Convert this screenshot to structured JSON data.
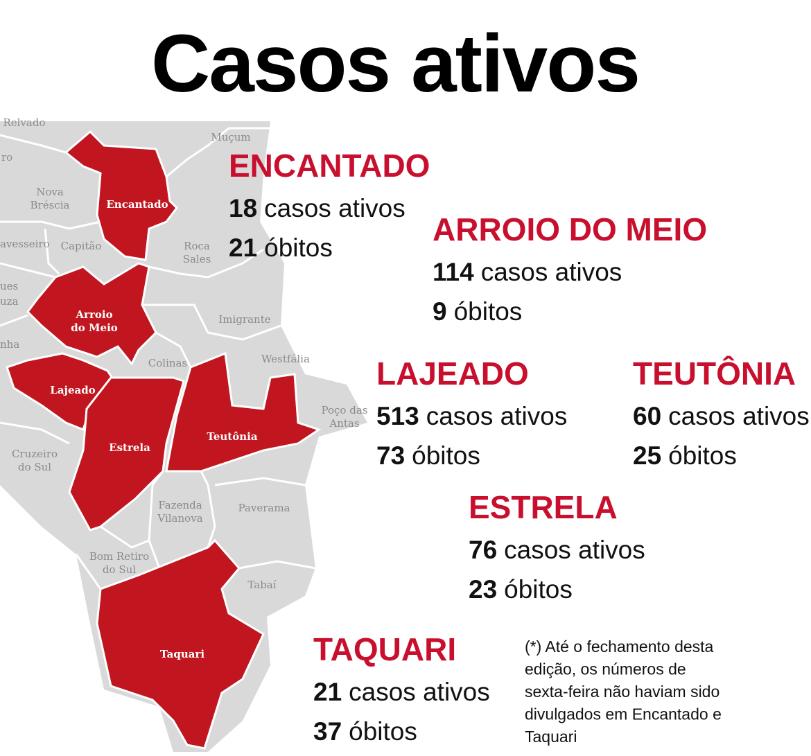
{
  "title": "Casos ativos",
  "map": {
    "labels": [
      {
        "lines": [
          "Relvado"
        ]
      },
      {
        "lines": [
          "ro"
        ]
      },
      {
        "lines": [
          "avesseiro"
        ]
      },
      {
        "lines": [
          "ues"
        ]
      },
      {
        "lines": [
          "uza"
        ]
      },
      {
        "lines": [
          "nha"
        ]
      },
      {
        "lines": [
          "Muçum"
        ]
      },
      {
        "lines": [
          "Nova",
          "Bréscia"
        ]
      },
      {
        "lines": [
          "Capitão"
        ]
      },
      {
        "lines": [
          "Roca",
          "Sales"
        ]
      },
      {
        "lines": [
          "Imigrante"
        ]
      },
      {
        "lines": [
          "Colinas"
        ]
      },
      {
        "lines": [
          "Westfália"
        ]
      },
      {
        "lines": [
          "Poço das",
          "Antas"
        ]
      },
      {
        "lines": [
          "Cruzeiro",
          "do Sul"
        ]
      },
      {
        "lines": [
          "Fazenda",
          "Vilanova"
        ]
      },
      {
        "lines": [
          "Paverama"
        ]
      },
      {
        "lines": [
          "Bom Retiro",
          "do Sul"
        ]
      },
      {
        "lines": [
          "Tabaí"
        ]
      }
    ],
    "highlighted_labels": [
      {
        "lines": [
          "Encantado"
        ]
      },
      {
        "lines": [
          "Arroio",
          "do Meio"
        ]
      },
      {
        "lines": [
          "Lajeado"
        ]
      },
      {
        "lines": [
          "Estrela"
        ]
      },
      {
        "lines": [
          "Teutônia"
        ]
      },
      {
        "lines": [
          "Taquari"
        ]
      }
    ]
  },
  "cities": [
    {
      "name": "ENCANTADO",
      "cases": 18,
      "cases_label": "casos ativos",
      "deaths": 21,
      "deaths_label": "óbitos"
    },
    {
      "name": "ARROIO DO MEIO",
      "cases": 114,
      "cases_label": "casos ativos",
      "deaths": 9,
      "deaths_label": "óbitos"
    },
    {
      "name": "LAJEADO",
      "cases": 513,
      "cases_label": "casos ativos",
      "deaths": 73,
      "deaths_label": "óbitos"
    },
    {
      "name": "TEUTÔNIA",
      "cases": 60,
      "cases_label": "casos ativos",
      "deaths": 25,
      "deaths_label": "óbitos"
    },
    {
      "name": "ESTRELA",
      "cases": 76,
      "cases_label": "casos ativos",
      "deaths": 23,
      "deaths_label": "óbitos"
    },
    {
      "name": "TAQUARI",
      "cases": 21,
      "cases_label": "casos ativos",
      "deaths": 37,
      "deaths_label": "óbitos"
    }
  ],
  "footnote": [
    "(*) Até o fechamento desta",
    "edição, os números de",
    "sexta-feira não haviam sido",
    "divulgados em Encantado e",
    "Taquari"
  ]
}
